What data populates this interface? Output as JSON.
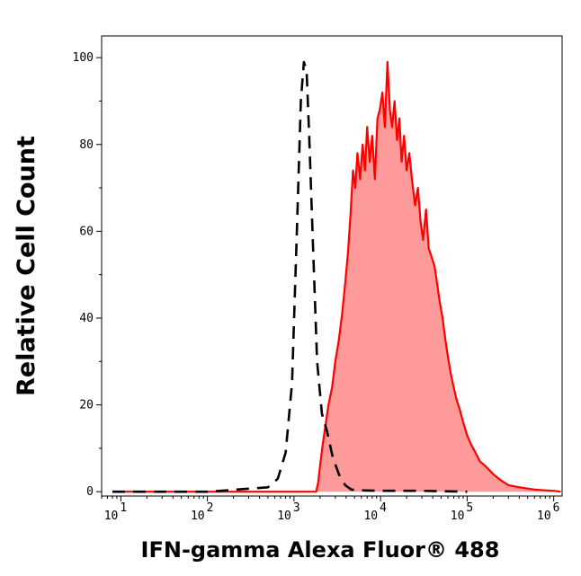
{
  "chart_data": {
    "type": "area",
    "title": "",
    "xlabel": "IFN-gamma Alexa Fluor® 488",
    "ylabel": "Relative Cell Count",
    "x_scale": "log",
    "xlim": [
      6,
      1250000
    ],
    "ylim": [
      -1,
      105
    ],
    "grid": false,
    "y_ticks": [
      {
        "value": 0,
        "label": "0"
      },
      {
        "value": 20,
        "label": "20"
      },
      {
        "value": 40,
        "label": "40"
      },
      {
        "value": 60,
        "label": "60"
      },
      {
        "value": 80,
        "label": "80"
      },
      {
        "value": 100,
        "label": "100"
      }
    ],
    "x_ticks": [
      {
        "value": 10,
        "base": "10",
        "exp": "1"
      },
      {
        "value": 100,
        "base": "10",
        "exp": "2"
      },
      {
        "value": 1000,
        "base": "10",
        "exp": "3"
      },
      {
        "value": 10000,
        "base": "10",
        "exp": "4"
      },
      {
        "value": 100000,
        "base": "10",
        "exp": "5"
      },
      {
        "value": 1000000,
        "base": "10",
        "exp": "6"
      }
    ],
    "series": [
      {
        "style": "dashed",
        "color": "#000000",
        "x": [
          8,
          100,
          500,
          650,
          800,
          950,
          1080,
          1200,
          1300,
          1400,
          1500,
          1650,
          1850,
          2100,
          2400,
          2800,
          3300,
          3900,
          4600,
          6000,
          10000,
          30000,
          100000
        ],
        "y": [
          0,
          0,
          1,
          3,
          9,
          25,
          60,
          90,
          99,
          97,
          82,
          58,
          30,
          18,
          14,
          8,
          4,
          1.5,
          0.5,
          0.3,
          0.2,
          0.2,
          0
        ]
      },
      {
        "style": "filled",
        "color": "#ff0000",
        "fill": "#ff9a9a",
        "x": [
          8,
          100,
          1000,
          1800,
          1900,
          2000,
          2150,
          2300,
          2500,
          2750,
          3000,
          3300,
          3600,
          3900,
          4200,
          4500,
          4800,
          5100,
          5400,
          5800,
          6200,
          6600,
          7000,
          7500,
          8000,
          8600,
          9200,
          9800,
          10500,
          11200,
          12000,
          12800,
          13600,
          14500,
          15500,
          16500,
          17500,
          18700,
          20000,
          21500,
          23000,
          25000,
          27000,
          29000,
          31000,
          33500,
          36000,
          39000,
          42000,
          45000,
          48000,
          52000,
          56000,
          60000,
          65000,
          70000,
          76000,
          82000,
          90000,
          100000,
          110000,
          125000,
          140000,
          160000,
          180000,
          200000,
          250000,
          300000,
          400000,
          600000,
          800000,
          1000000,
          1200000
        ],
        "y": [
          0,
          0,
          0,
          0,
          2,
          6,
          11,
          15,
          20,
          24,
          30,
          35,
          41,
          48,
          55,
          64,
          74,
          70,
          78,
          72,
          80,
          74,
          84,
          76,
          82,
          72,
          86,
          88,
          92,
          84,
          99,
          88,
          84,
          90,
          81,
          86,
          76,
          82,
          74,
          78,
          72,
          66,
          70,
          62,
          58,
          65,
          56,
          54,
          52,
          48,
          44,
          40,
          35,
          31,
          27,
          24,
          21,
          19,
          16,
          13,
          11,
          9,
          7,
          6,
          5,
          4,
          2.5,
          1.5,
          1,
          0.5,
          0.3,
          0.2,
          0
        ]
      }
    ]
  }
}
